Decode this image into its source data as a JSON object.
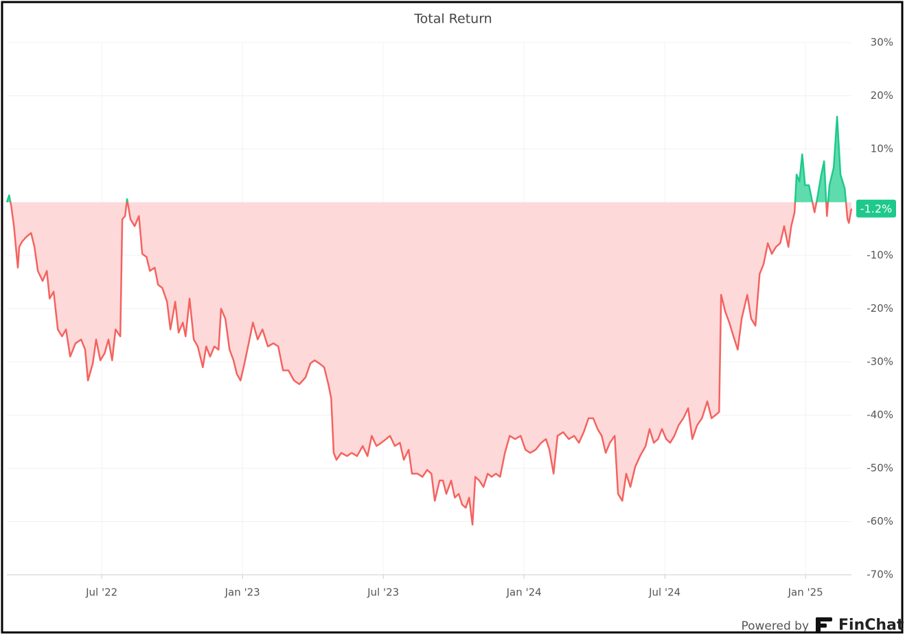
{
  "chart_data": {
    "type": "area",
    "title": "Total Return",
    "series": [
      {
        "name": "Total Return",
        "color_above": "#1ec98b",
        "color_below": "#f4625f",
        "fill_above": "#5fdcae",
        "fill_below": "#fdd9d9",
        "x": [
          2022.163,
          2022.171,
          2022.178,
          2022.188,
          2022.195,
          2022.202,
          2022.207,
          2022.217,
          2022.232,
          2022.249,
          2022.261,
          2022.273,
          2022.29,
          2022.305,
          2022.315,
          2022.329,
          2022.344,
          2022.359,
          2022.373,
          2022.388,
          2022.407,
          2022.427,
          2022.441,
          2022.451,
          2022.468,
          2022.48,
          2022.495,
          2022.51,
          2022.524,
          2022.537,
          2022.549,
          2022.566,
          2022.573,
          2022.583,
          2022.59,
          2022.602,
          2022.617,
          2022.632,
          2022.644,
          2022.659,
          2022.671,
          2022.688,
          2022.7,
          2022.715,
          2022.732,
          2022.744,
          2022.761,
          2022.773,
          2022.788,
          2022.798,
          2022.812,
          2022.827,
          2022.841,
          2022.859,
          2022.871,
          2022.885,
          2022.9,
          2022.915,
          2022.924,
          2022.939,
          2022.954,
          2022.968,
          2022.98,
          2022.993,
          2023.007,
          2023.022,
          2023.037,
          2023.054,
          2023.071,
          2023.09,
          2023.11,
          2023.127,
          2023.144,
          2023.163,
          2023.183,
          2023.202,
          2023.224,
          2023.241,
          2023.256,
          2023.273,
          2023.29,
          2023.305,
          2023.315,
          2023.324,
          2023.334,
          2023.351,
          2023.371,
          2023.388,
          2023.407,
          2023.427,
          2023.444,
          2023.459,
          2023.476,
          2023.493,
          2023.51,
          2023.524,
          2023.541,
          2023.559,
          2023.573,
          2023.59,
          2023.602,
          2023.622,
          2023.639,
          2023.656,
          2023.671,
          2023.683,
          2023.7,
          2023.712,
          2023.724,
          2023.741,
          2023.754,
          2023.768,
          2023.78,
          2023.793,
          2023.805,
          2023.817,
          2023.827,
          2023.841,
          2023.856,
          2023.871,
          2023.885,
          2023.9,
          2023.915,
          2023.932,
          2023.949,
          2023.968,
          2023.988,
          2024.005,
          2024.022,
          2024.041,
          2024.061,
          2024.078,
          2024.09,
          2024.105,
          2024.119,
          2024.139,
          2024.159,
          2024.178,
          2024.195,
          2024.212,
          2024.229,
          2024.246,
          2024.261,
          2024.276,
          2024.29,
          2024.305,
          2024.322,
          2024.334,
          2024.349,
          2024.363,
          2024.378,
          2024.395,
          2024.412,
          2024.432,
          2024.446,
          2024.461,
          2024.476,
          2024.49,
          2024.505,
          2024.519,
          2024.534,
          2024.549,
          2024.566,
          2024.583,
          2024.598,
          2024.615,
          2024.632,
          2024.651,
          2024.666,
          2024.68,
          2024.693,
          2024.7,
          2024.715,
          2024.729,
          2024.744,
          2024.759,
          2024.773,
          2024.793,
          2024.807,
          2024.822,
          2024.837,
          2024.851,
          2024.866,
          2024.88,
          2024.895,
          2024.91,
          2024.924,
          2024.939,
          2024.949,
          2024.961,
          2024.968,
          2024.978,
          2024.988,
          2024.998,
          2025.012,
          2025.022,
          2025.032,
          2025.041,
          2025.056,
          2025.066,
          2025.076,
          2025.085,
          2025.1,
          2025.112,
          2025.124,
          2025.139,
          2025.149,
          2025.154,
          2025.163
        ],
        "values": [
          0,
          1.3,
          -0.6,
          -4.5,
          -8.4,
          -12.3,
          -8.4,
          -7.4,
          -6.5,
          -5.8,
          -8.4,
          -12.9,
          -14.8,
          -12.9,
          -18.1,
          -16.8,
          -23.9,
          -25.2,
          -23.9,
          -29.0,
          -26.5,
          -25.8,
          -27.7,
          -33.5,
          -30.3,
          -25.8,
          -29.7,
          -28.4,
          -25.8,
          -29.7,
          -23.9,
          -25.2,
          -3.2,
          -2.6,
          0.6,
          -3.2,
          -4.5,
          -2.6,
          -9.7,
          -10.3,
          -12.9,
          -12.3,
          -15.5,
          -16.1,
          -18.7,
          -23.9,
          -18.7,
          -24.5,
          -22.6,
          -25.2,
          -18.1,
          -25.8,
          -27.1,
          -31.0,
          -27.1,
          -29.0,
          -27.1,
          -27.7,
          -20.0,
          -21.9,
          -27.7,
          -29.7,
          -32.3,
          -33.5,
          -30.3,
          -26.5,
          -22.6,
          -25.8,
          -23.9,
          -27.1,
          -26.5,
          -27.1,
          -31.6,
          -31.6,
          -33.5,
          -34.2,
          -32.9,
          -30.3,
          -29.7,
          -30.3,
          -31.0,
          -34.2,
          -36.8,
          -47.1,
          -48.4,
          -47.1,
          -47.7,
          -47.1,
          -47.7,
          -45.8,
          -47.7,
          -43.9,
          -45.8,
          -45.2,
          -44.5,
          -43.9,
          -45.8,
          -45.2,
          -48.4,
          -46.5,
          -51.0,
          -51.0,
          -51.6,
          -50.3,
          -51.0,
          -56.1,
          -52.3,
          -52.3,
          -54.8,
          -52.3,
          -55.5,
          -54.8,
          -56.8,
          -57.4,
          -55.5,
          -60.6,
          -51.6,
          -52.3,
          -53.5,
          -51.0,
          -51.6,
          -51.0,
          -51.6,
          -47.1,
          -43.9,
          -44.5,
          -43.9,
          -46.5,
          -47.1,
          -46.5,
          -45.2,
          -44.5,
          -46.5,
          -51.0,
          -43.9,
          -43.2,
          -44.5,
          -43.9,
          -45.2,
          -43.2,
          -40.6,
          -40.6,
          -42.6,
          -43.9,
          -47.1,
          -45.2,
          -43.9,
          -54.8,
          -56.1,
          -51.0,
          -53.5,
          -49.7,
          -47.7,
          -45.8,
          -42.6,
          -45.2,
          -44.5,
          -42.6,
          -44.5,
          -45.2,
          -43.9,
          -41.9,
          -40.6,
          -38.7,
          -44.5,
          -41.9,
          -40.6,
          -37.4,
          -40.6,
          -40.0,
          -39.4,
          -17.4,
          -20.6,
          -22.6,
          -25.2,
          -27.7,
          -21.9,
          -17.4,
          -21.9,
          -23.2,
          -13.5,
          -11.6,
          -7.7,
          -9.7,
          -8.4,
          -7.7,
          -4.5,
          -8.4,
          -4.5,
          -1.9,
          5.2,
          3.9,
          9.0,
          3.2,
          3.2,
          0.6,
          -1.9,
          0.6,
          5.2,
          7.7,
          -2.6,
          3.2,
          6.5,
          16.1,
          5.2,
          2.6,
          -3.2,
          -3.9,
          -1.2
        ]
      }
    ],
    "end_label": "-1.2%",
    "end_label_color": "#1ec98b",
    "xlim": [
      2022.163,
      2025.163
    ],
    "xticks": [
      {
        "value": 2022.5,
        "label": "Jul '22"
      },
      {
        "value": 2023.0,
        "label": "Jan '23"
      },
      {
        "value": 2023.5,
        "label": "Jul '23"
      },
      {
        "value": 2024.0,
        "label": "Jan '24"
      },
      {
        "value": 2024.5,
        "label": "Jul '24"
      },
      {
        "value": 2025.0,
        "label": "Jan '25"
      }
    ],
    "ylim": [
      -70,
      30
    ],
    "yticks": [
      {
        "value": 30,
        "label": "30%"
      },
      {
        "value": 20,
        "label": "20%"
      },
      {
        "value": 10,
        "label": "10%"
      },
      {
        "value": -10,
        "label": "-10%"
      },
      {
        "value": -20,
        "label": "-20%"
      },
      {
        "value": -30,
        "label": "-30%"
      },
      {
        "value": -40,
        "label": "-40%"
      },
      {
        "value": -50,
        "label": "-50%"
      },
      {
        "value": -60,
        "label": "-60%"
      },
      {
        "value": -70,
        "label": "-70%"
      }
    ],
    "grid": true,
    "footer": "Powered by",
    "brand": "FinChat"
  }
}
